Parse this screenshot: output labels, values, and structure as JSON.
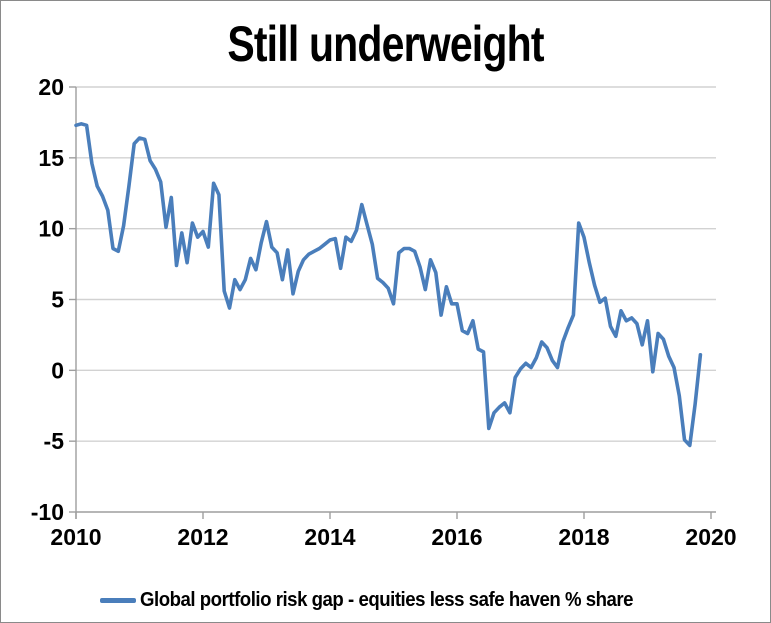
{
  "window": {
    "background": "#ffffff",
    "border_color": "#8a8a8a"
  },
  "chart_data": {
    "type": "line",
    "title": "Still underweight",
    "xlabel": "",
    "ylabel": "",
    "x_start": 2010,
    "points_per_year": 12,
    "xlim": [
      2010,
      2020.1
    ],
    "ylim": [
      -10,
      20
    ],
    "x_ticks": [
      2010,
      2012,
      2014,
      2016,
      2018,
      2020
    ],
    "y_ticks": [
      20,
      15,
      10,
      5,
      0,
      -5,
      -10
    ],
    "grid": "horizontal",
    "gridline_color": "#d2d2d2",
    "axis_color": "#9e9e9e",
    "legend_position": "bottom",
    "legend": [
      {
        "label": "Global portfolio risk gap - equities less safe haven % share",
        "color": "#4a7ebb"
      }
    ],
    "series": [
      {
        "name": "Global portfolio risk gap - equities less safe haven % share",
        "color": "#4a7ebb",
        "x_unit": "month",
        "first_point": "2010-01",
        "last_point": "2019-11",
        "values": [
          17.3,
          17.4,
          17.3,
          14.6,
          13.0,
          12.3,
          11.3,
          8.6,
          8.4,
          10.2,
          13.0,
          16.0,
          16.4,
          16.3,
          14.8,
          14.2,
          13.3,
          10.1,
          12.2,
          7.4,
          9.7,
          7.6,
          10.4,
          9.4,
          9.8,
          8.7,
          13.2,
          12.4,
          5.6,
          4.4,
          6.4,
          5.7,
          6.4,
          7.9,
          7.1,
          9.0,
          10.5,
          8.7,
          8.3,
          6.4,
          8.5,
          5.4,
          7.0,
          7.8,
          8.2,
          8.4,
          8.6,
          8.9,
          9.2,
          9.3,
          7.2,
          9.4,
          9.1,
          9.9,
          11.7,
          10.3,
          8.9,
          6.5,
          6.2,
          5.8,
          4.7,
          8.3,
          8.6,
          8.6,
          8.4,
          7.3,
          5.7,
          7.8,
          6.9,
          3.9,
          5.9,
          4.7,
          4.7,
          2.8,
          2.6,
          3.5,
          1.5,
          1.3,
          -4.1,
          -3.0,
          -2.6,
          -2.3,
          -3.0,
          -0.5,
          0.1,
          0.5,
          0.2,
          0.9,
          2.0,
          1.6,
          0.7,
          0.2,
          2.0,
          3.0,
          3.9,
          10.4,
          9.4,
          7.6,
          6.0,
          4.8,
          5.1,
          3.1,
          2.4,
          4.2,
          3.5,
          3.7,
          3.3,
          1.8,
          3.5,
          -0.1,
          2.6,
          2.2,
          1.0,
          0.2,
          -1.8,
          -4.9,
          -5.3,
          -2.4,
          1.1
        ]
      }
    ]
  }
}
